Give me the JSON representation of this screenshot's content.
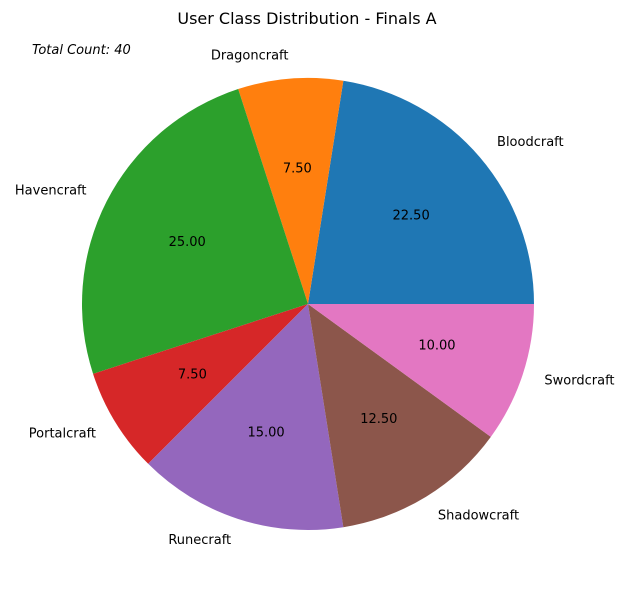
{
  "chart_data": {
    "type": "pie",
    "title": "User Class Distribution - Finals A",
    "annotation": "Total Count: 40",
    "categories": [
      "Bloodcraft",
      "Dragoncraft",
      "Havencraft",
      "Portalcraft",
      "Runecraft",
      "Shadowcraft",
      "Swordcraft"
    ],
    "values": [
      22.5,
      7.5,
      25.0,
      7.5,
      15.0,
      12.5,
      10.0
    ],
    "value_labels": [
      "22.50",
      "7.50",
      "25.00",
      "7.50",
      "15.00",
      "12.50",
      "10.00"
    ],
    "colors": [
      "#1f77b4",
      "#ff7f0e",
      "#2ca02c",
      "#d62728",
      "#9467bd",
      "#8c564b",
      "#e377c2"
    ],
    "start_angle_deg": 0,
    "direction": "counterclockwise"
  }
}
